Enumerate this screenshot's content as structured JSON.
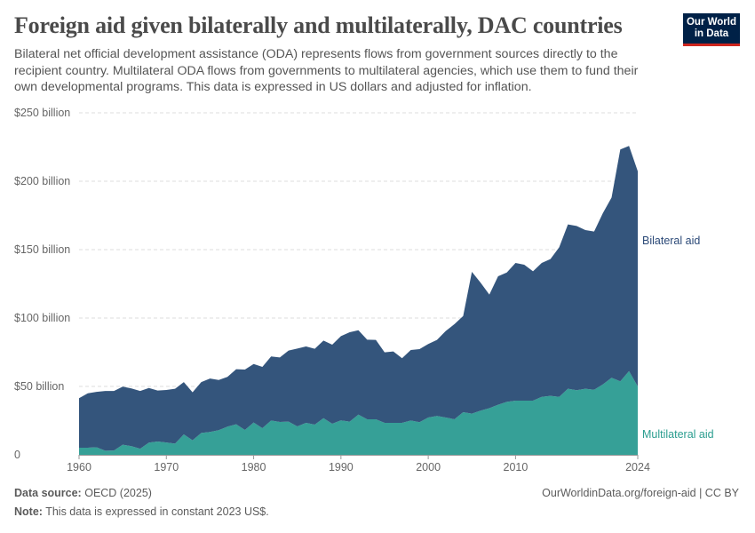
{
  "header": {
    "title": "Foreign aid given bilaterally and multilaterally, DAC countries",
    "subtitle": "Bilateral net official development assistance (ODA) represents flows from government sources directly to the recipient country. Multilateral ODA flows from governments to multilateral agencies, which use them to fund their own developmental programs. This data is expressed in US dollars and adjusted for inflation.",
    "logo_text": "Our World in Data"
  },
  "footer": {
    "source_label": "Data source:",
    "source": "OECD (2025)",
    "note_label": "Note:",
    "note": "This data is expressed in constant 2023 US$.",
    "url": "OurWorldinData.org/foreign-aid | CC BY"
  },
  "chart_data": {
    "type": "area",
    "stacked": true,
    "xlim": [
      1960,
      2024
    ],
    "ylim": [
      0,
      250
    ],
    "grid": true,
    "legend": "right, inline labels",
    "x_ticks": [
      "1960",
      "1970",
      "1980",
      "1990",
      "2000",
      "2010",
      "2024"
    ],
    "x_tick_values": [
      1960,
      1970,
      1980,
      1990,
      2000,
      2010,
      2024
    ],
    "y_ticks": [
      "0",
      "$50 billion",
      "$100 billion",
      "$150 billion",
      "$200 billion",
      "$250 billion"
    ],
    "y_tick_values": [
      0,
      50,
      100,
      150,
      200,
      250
    ],
    "unit": "billion US$",
    "x": [
      1960,
      1961,
      1962,
      1963,
      1964,
      1965,
      1966,
      1967,
      1968,
      1969,
      1970,
      1971,
      1972,
      1973,
      1974,
      1975,
      1976,
      1977,
      1978,
      1979,
      1980,
      1981,
      1982,
      1983,
      1984,
      1985,
      1986,
      1987,
      1988,
      1989,
      1990,
      1991,
      1992,
      1993,
      1994,
      1995,
      1996,
      1997,
      1998,
      1999,
      2000,
      2001,
      2002,
      2003,
      2004,
      2005,
      2006,
      2007,
      2008,
      2009,
      2010,
      2011,
      2012,
      2013,
      2014,
      2015,
      2016,
      2017,
      2018,
      2019,
      2020,
      2021,
      2022,
      2023,
      2024
    ],
    "series": [
      {
        "name": "Multilateral aid",
        "color": "#36a097",
        "values": [
          5.2,
          5.2,
          5.5,
          3,
          3.2,
          7.4,
          6.3,
          4.5,
          8.9,
          9.7,
          9,
          8.2,
          14.9,
          10.6,
          16,
          16.7,
          18,
          20.6,
          22.3,
          18.2,
          23.6,
          19.5,
          25.1,
          24,
          24.3,
          20.8,
          23.4,
          22.1,
          26.8,
          22.7,
          25.2,
          24.3,
          29.4,
          26,
          26,
          23.4,
          23.4,
          23.4,
          25.1,
          23.9,
          27.3,
          28.4,
          27.3,
          26,
          31.2,
          30.1,
          32.3,
          34.1,
          36.6,
          38.7,
          39.6,
          39.6,
          39.6,
          42.4,
          43.1,
          42.4,
          48.3,
          47.2,
          48.3,
          47.6,
          51.5,
          56.3,
          53.7,
          61.2,
          50
        ]
      },
      {
        "name": "Bilateral aid",
        "color": "#34557c",
        "values": [
          36.2,
          39.8,
          40.5,
          43.7,
          43.5,
          42.4,
          42.2,
          42.2,
          40,
          37.3,
          38.4,
          40.1,
          38.3,
          35.1,
          37.2,
          39.1,
          36.7,
          36.4,
          40.3,
          44.1,
          42.8,
          44.8,
          46.8,
          47.2,
          51.9,
          56.9,
          55.8,
          55.4,
          56.7,
          57.8,
          61.6,
          65.3,
          61.7,
          58.2,
          58,
          51.5,
          52.2,
          47.2,
          51.5,
          53.4,
          53.7,
          55.6,
          63.2,
          69.5,
          70.3,
          103.7,
          93.5,
          83,
          93.9,
          94.6,
          100.7,
          99.4,
          94.6,
          97.9,
          100,
          109.3,
          120.1,
          120.1,
          116,
          115.6,
          125.1,
          131.8,
          169.5,
          164.6,
          157.3
        ]
      }
    ],
    "label_colors": {
      "Bilateral aid": "#2c4a78",
      "Multilateral aid": "#2a9d8f"
    }
  }
}
